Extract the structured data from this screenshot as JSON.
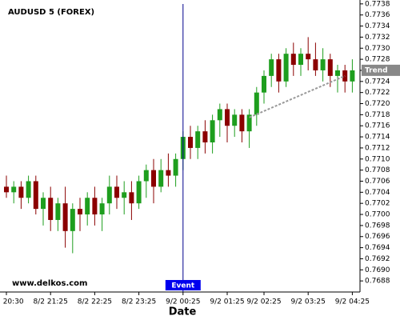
{
  "chart_data": {
    "type": "candlestick",
    "title": "AUDUSD 5 (FOREX)",
    "watermark": "www.delkos.com",
    "x_label": "Date",
    "categories": [
      "8/2 20:30",
      null,
      null,
      null,
      null,
      null,
      "8/2 21:25",
      null,
      null,
      null,
      null,
      null,
      "8/2 22:25",
      null,
      null,
      null,
      null,
      null,
      "8/2 23:25",
      null,
      null,
      null,
      null,
      null,
      "9/2 00:25",
      null,
      null,
      null,
      null,
      null,
      "9/2 01:25",
      null,
      null,
      null,
      null,
      "9/2 02:25",
      null,
      null,
      null,
      null,
      null,
      "9/2 03:25",
      null,
      null,
      null,
      null,
      null,
      "9/2 04:25"
    ],
    "open": [
      0.7705,
      0.7704,
      0.7705,
      0.7703,
      0.7706,
      0.7701,
      0.7703,
      0.7699,
      0.7702,
      0.7697,
      0.7701,
      0.77,
      0.7703,
      0.77,
      0.7702,
      0.7705,
      0.7703,
      0.7704,
      0.7702,
      0.7706,
      0.7708,
      0.7705,
      0.7708,
      0.7707,
      0.771,
      0.7714,
      0.7712,
      0.7715,
      0.7713,
      0.7717,
      0.7719,
      0.7716,
      0.7718,
      0.7715,
      0.7718,
      0.7722,
      0.7725,
      0.7728,
      0.7724,
      0.7729,
      0.7727,
      0.7729,
      0.7728,
      0.7726,
      0.7728,
      0.7725,
      0.7726,
      0.7724
    ],
    "high": [
      0.7707,
      0.7706,
      0.7706,
      0.7707,
      0.7707,
      0.7704,
      0.7705,
      0.7703,
      0.7705,
      0.7702,
      0.7703,
      0.7704,
      0.7705,
      0.7703,
      0.7707,
      0.7707,
      0.7706,
      0.7706,
      0.7707,
      0.7709,
      0.771,
      0.771,
      0.7711,
      0.7711,
      0.7715,
      0.7716,
      0.7716,
      0.7717,
      0.7718,
      0.772,
      0.772,
      0.7719,
      0.7719,
      0.7719,
      0.7723,
      0.7726,
      0.7729,
      0.7729,
      0.773,
      0.7731,
      0.773,
      0.7732,
      0.7731,
      0.773,
      0.7729,
      0.7727,
      0.7727,
      0.7728
    ],
    "low": [
      0.7703,
      0.7702,
      0.7701,
      0.7702,
      0.77,
      0.7698,
      0.7697,
      0.7697,
      0.7694,
      0.7693,
      0.7697,
      0.7698,
      0.7698,
      0.7697,
      0.77,
      0.7701,
      0.77,
      0.7699,
      0.7701,
      0.7703,
      0.7702,
      0.7704,
      0.7705,
      0.7705,
      0.7708,
      0.771,
      0.771,
      0.7711,
      0.7711,
      0.7714,
      0.7713,
      0.7714,
      0.7713,
      0.7712,
      0.7716,
      0.772,
      0.7723,
      0.7722,
      0.7723,
      0.7725,
      0.7725,
      0.7726,
      0.7725,
      0.7724,
      0.7723,
      0.7722,
      0.7722,
      0.7722
    ],
    "close": [
      0.7704,
      0.7705,
      0.7703,
      0.7706,
      0.7701,
      0.7703,
      0.7699,
      0.7702,
      0.7697,
      0.7701,
      0.77,
      0.7703,
      0.77,
      0.7702,
      0.7705,
      0.7703,
      0.7704,
      0.7702,
      0.7706,
      0.7708,
      0.7705,
      0.7708,
      0.7707,
      0.771,
      0.7714,
      0.7712,
      0.7715,
      0.7713,
      0.7717,
      0.7719,
      0.7716,
      0.7718,
      0.7715,
      0.7718,
      0.7722,
      0.7725,
      0.7728,
      0.7724,
      0.7729,
      0.7727,
      0.7729,
      0.7728,
      0.7726,
      0.7728,
      0.7725,
      0.7726,
      0.7724,
      0.7726
    ],
    "up_color": "#1e9e1e",
    "down_color": "#8b0000",
    "ylim": [
      0.7686,
      0.77387
    ],
    "yticks": [
      0.7688,
      {
        "value": 0.769,
        "label": "0.7690"
      },
      0.7692,
      0.7694,
      0.7696,
      0.7698,
      {
        "value": 0.77,
        "label": "0.7700"
      },
      0.7702,
      0.7704,
      0.7706,
      0.7708,
      {
        "value": 0.771,
        "label": "0.7710"
      },
      0.7712,
      0.7714,
      0.7716,
      0.7718,
      {
        "value": 0.772,
        "label": "0.7720"
      },
      0.7722,
      0.7724,
      0.7726,
      0.7728,
      {
        "value": 0.773,
        "label": "0.7730"
      },
      0.7732,
      0.7734,
      0.7736,
      0.7738
    ],
    "event": {
      "label": "Event",
      "index": 24
    },
    "trend": {
      "label": "Trend",
      "start": 33,
      "end": 46,
      "values": [
        0.77175,
        0.7725
      ]
    }
  }
}
